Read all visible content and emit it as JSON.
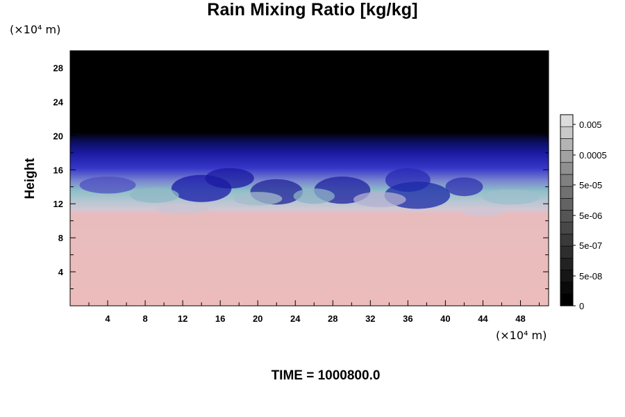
{
  "title": "Rain Mixing Ratio [kg/kg]",
  "time_label": "TIME = 1000800.0",
  "chart_data": {
    "type": "heatmap",
    "title": "Rain Mixing Ratio [kg/kg]",
    "xlabel": "",
    "ylabel": "Height",
    "x_unit": "(×10⁴ m)",
    "y_unit": "(×10⁴ m)",
    "xlim": [
      0,
      51
    ],
    "ylim": [
      0,
      30
    ],
    "x_ticks": [
      4,
      8,
      12,
      16,
      20,
      24,
      28,
      32,
      36,
      40,
      44,
      48
    ],
    "y_ticks": [
      4,
      8,
      12,
      16,
      20,
      24,
      28
    ],
    "colorbar": {
      "tick_labels": [
        "0.005",
        "0.0005",
        "5e-05",
        "5e-06",
        "5e-07",
        "5e-08",
        "0"
      ],
      "levels": 16,
      "colors": [
        "#000000",
        "#0a0a0a",
        "#161616",
        "#222222",
        "#2e2e2e",
        "#3a3a3a",
        "#474747",
        "#555555",
        "#636363",
        "#717171",
        "#808080",
        "#909090",
        "#a2a2a2",
        "#b4b4b4",
        "#c8c8c8",
        "#dcdcdc"
      ]
    },
    "regions": [
      {
        "band": "top",
        "from": 19.5,
        "to": 30,
        "color": "#000000"
      },
      {
        "band": "upper-blue",
        "from": 15,
        "to": 19.5,
        "color": "#1d1ea8"
      },
      {
        "band": "mixing-cyan",
        "from": 12,
        "to": 15,
        "color": "#7fb2c2"
      },
      {
        "band": "lower-pink",
        "from": 0,
        "to": 11.5,
        "color": "#ecbcbc"
      }
    ]
  }
}
